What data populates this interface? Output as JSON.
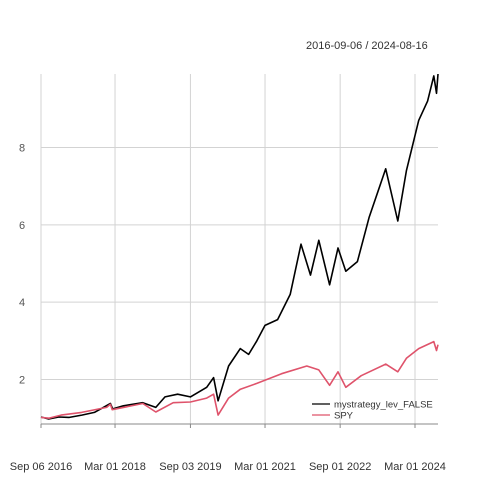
{
  "header": {
    "date_range": "2016-09-06 / 2024-08-16"
  },
  "chart_data": {
    "type": "line",
    "grid": true,
    "legend_position": "bottom-right",
    "xlim": [
      "2016-09-06",
      "2024-08-16"
    ],
    "ylim": [
      0.85,
      9.9
    ],
    "x_ticks": [
      {
        "date": "2016-09-06",
        "label": "Sep 06 2016"
      },
      {
        "date": "2018-03-01",
        "label": "Mar 01 2018"
      },
      {
        "date": "2019-09-03",
        "label": "Sep 03 2019"
      },
      {
        "date": "2021-03-01",
        "label": "Mar 01 2021"
      },
      {
        "date": "2022-09-01",
        "label": "Sep 01 2022"
      },
      {
        "date": "2024-03-01",
        "label": "Mar 01 2024"
      }
    ],
    "y_ticks": [
      {
        "value": 2,
        "label": "2"
      },
      {
        "value": 4,
        "label": "4"
      },
      {
        "value": 6,
        "label": "6"
      },
      {
        "value": 8,
        "label": "8"
      }
    ],
    "series": [
      {
        "name": "mystrategy_lev_FALSE",
        "color": "#000000",
        "points": [
          [
            "2016-09-06",
            1.03
          ],
          [
            "2016-11-01",
            0.98
          ],
          [
            "2017-01-15",
            1.03
          ],
          [
            "2017-04-01",
            1.02
          ],
          [
            "2017-07-01",
            1.08
          ],
          [
            "2017-10-01",
            1.15
          ],
          [
            "2018-01-26",
            1.38
          ],
          [
            "2018-02-12",
            1.24
          ],
          [
            "2018-05-01",
            1.32
          ],
          [
            "2018-09-20",
            1.4
          ],
          [
            "2018-12-24",
            1.28
          ],
          [
            "2019-03-01",
            1.55
          ],
          [
            "2019-06-01",
            1.62
          ],
          [
            "2019-09-03",
            1.55
          ],
          [
            "2019-12-31",
            1.8
          ],
          [
            "2020-02-19",
            2.05
          ],
          [
            "2020-03-23",
            1.45
          ],
          [
            "2020-06-08",
            2.35
          ],
          [
            "2020-09-01",
            2.8
          ],
          [
            "2020-11-01",
            2.65
          ],
          [
            "2020-12-31",
            3.0
          ],
          [
            "2021-03-01",
            3.4
          ],
          [
            "2021-06-01",
            3.55
          ],
          [
            "2021-09-01",
            4.2
          ],
          [
            "2021-11-19",
            5.5
          ],
          [
            "2022-01-27",
            4.7
          ],
          [
            "2022-03-29",
            5.6
          ],
          [
            "2022-06-16",
            4.45
          ],
          [
            "2022-08-16",
            5.4
          ],
          [
            "2022-10-12",
            4.8
          ],
          [
            "2023-01-05",
            5.05
          ],
          [
            "2023-04-01",
            6.2
          ],
          [
            "2023-07-31",
            7.45
          ],
          [
            "2023-10-27",
            6.1
          ],
          [
            "2023-12-29",
            7.4
          ],
          [
            "2024-03-28",
            8.7
          ],
          [
            "2024-06-01",
            9.2
          ],
          [
            "2024-07-16",
            9.85
          ],
          [
            "2024-08-05",
            9.4
          ],
          [
            "2024-08-16",
            9.9
          ]
        ]
      },
      {
        "name": "SPY",
        "color": "#df536b",
        "points": [
          [
            "2016-09-06",
            1.02
          ],
          [
            "2016-11-04",
            1.0
          ],
          [
            "2017-01-31",
            1.08
          ],
          [
            "2017-06-30",
            1.15
          ],
          [
            "2017-12-29",
            1.28
          ],
          [
            "2018-01-26",
            1.36
          ],
          [
            "2018-02-08",
            1.22
          ],
          [
            "2018-09-20",
            1.38
          ],
          [
            "2018-12-24",
            1.16
          ],
          [
            "2019-04-30",
            1.4
          ],
          [
            "2019-09-03",
            1.42
          ],
          [
            "2019-12-31",
            1.52
          ],
          [
            "2020-02-19",
            1.62
          ],
          [
            "2020-03-23",
            1.08
          ],
          [
            "2020-06-08",
            1.52
          ],
          [
            "2020-09-02",
            1.75
          ],
          [
            "2020-12-31",
            1.9
          ],
          [
            "2021-06-30",
            2.15
          ],
          [
            "2021-12-31",
            2.35
          ],
          [
            "2022-03-29",
            2.25
          ],
          [
            "2022-06-16",
            1.85
          ],
          [
            "2022-08-16",
            2.2
          ],
          [
            "2022-10-12",
            1.8
          ],
          [
            "2023-02-02",
            2.1
          ],
          [
            "2023-07-31",
            2.4
          ],
          [
            "2023-10-27",
            2.2
          ],
          [
            "2023-12-29",
            2.55
          ],
          [
            "2024-03-28",
            2.8
          ],
          [
            "2024-07-16",
            2.98
          ],
          [
            "2024-08-05",
            2.75
          ],
          [
            "2024-08-16",
            2.9
          ]
        ]
      }
    ]
  }
}
